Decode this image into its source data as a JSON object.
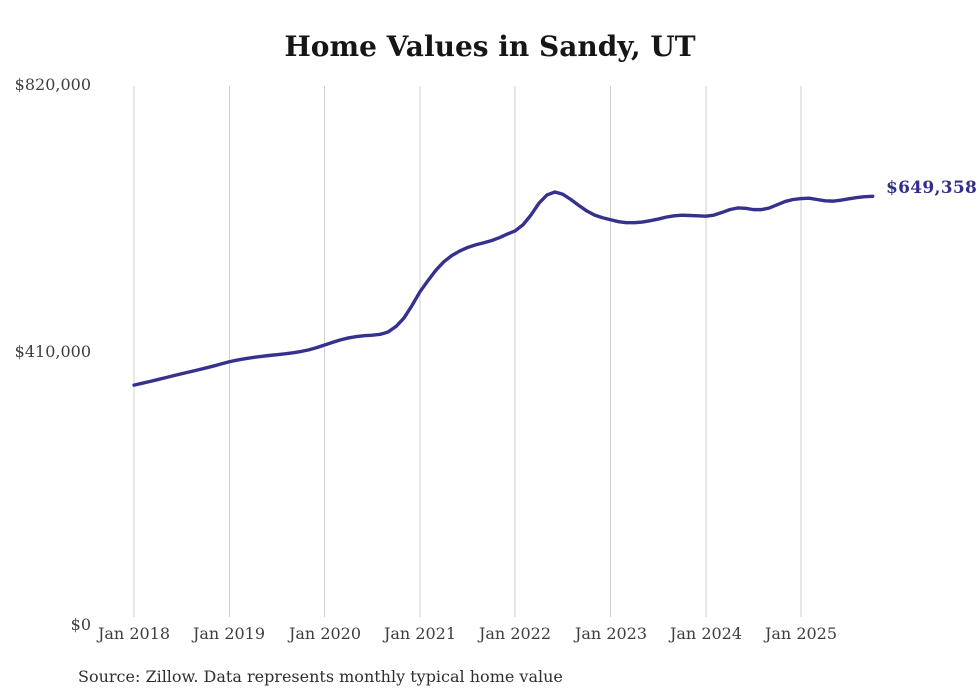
{
  "title": "Home Values in Sandy, UT",
  "end_label": "$649,358",
  "source_note": "Source: Zillow. Data represents monthly typical home value",
  "colors": {
    "line": "#37318e",
    "end_label_text": "#332f8d",
    "gridline": "#cfcfcf",
    "title_text": "#161616",
    "tick_text": "#3e3e3e",
    "source_text": "#2f2f2f",
    "background": "#ffffff"
  },
  "chart_data": {
    "type": "line",
    "title": "Home Values in Sandy, UT",
    "xlabel": "",
    "ylabel": "",
    "legend": "none",
    "grid": "vertical-only",
    "ylim": [
      0,
      820000
    ],
    "y_tick_values": [
      820000,
      410000,
      0
    ],
    "y_tick_labels": [
      "$820,000",
      "$410,000",
      "$0"
    ],
    "x_tick_labels": [
      "Jan 2018",
      "Jan 2019",
      "Jan 2020",
      "Jan 2021",
      "Jan 2022",
      "Jan 2023",
      "Jan 2024",
      "Jan 2025"
    ],
    "x_range": {
      "start": "Jan 2018",
      "end": "Oct 2025",
      "interval": "monthly"
    },
    "last_value": 649358,
    "peak": {
      "month": "Jun 2022",
      "value_approx": 656000
    },
    "series": [
      {
        "name": "Typical home value ($)",
        "values": [
          360000,
          362800,
          365600,
          368500,
          371500,
          374500,
          377400,
          380300,
          383200,
          386100,
          389200,
          392500,
          395800,
          398400,
          400500,
          402400,
          404000,
          405400,
          406600,
          407900,
          409500,
          411500,
          414000,
          417500,
          421500,
          425500,
          429300,
          432300,
          434500,
          435800,
          436600,
          437800,
          441500,
          450000,
          463000,
          482000,
          503000,
          520000,
          536000,
          549000,
          558500,
          565500,
          571000,
          575000,
          578000,
          581500,
          586000,
          591500,
          596500,
          606000,
          621000,
          639000,
          651500,
          656000,
          652500,
          644500,
          635500,
          627000,
          620500,
          616500,
          613500,
          610500,
          609000,
          609000,
          610000,
          612000,
          614500,
          617500,
          619500,
          620500,
          620000,
          619500,
          619000,
          620500,
          624500,
          629000,
          631500,
          631000,
          629000,
          629000,
          631500,
          636500,
          641500,
          644500,
          646000,
          646500,
          644500,
          642500,
          642000,
          643500,
          645500,
          647500,
          648800,
          649358
        ]
      }
    ]
  }
}
